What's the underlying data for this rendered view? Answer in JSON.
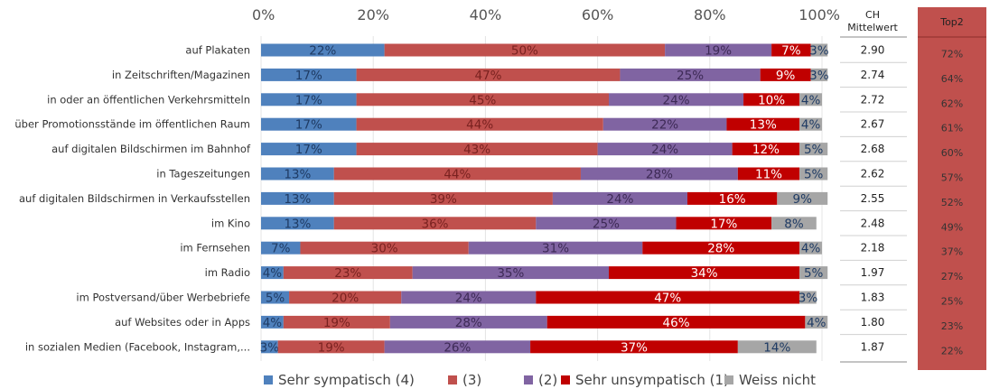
{
  "chart_data": {
    "type": "bar",
    "orientation": "horizontal",
    "stacked": true,
    "xlim": [
      0,
      100
    ],
    "x_ticks": [
      "0%",
      "20%",
      "40%",
      "60%",
      "80%",
      "100%"
    ],
    "categories": [
      "auf Plakaten",
      "in Zeitschriften/Magazinen",
      "in oder an öffentlichen Verkehrsmitteln",
      "über Promotionsstände im öffentlichen Raum",
      "auf digitalen Bildschirmen im Bahnhof",
      "in Tageszeitungen",
      "auf digitalen Bildschirmen in Verkaufsstellen",
      "im Kino",
      "im Fernsehen",
      "im Radio",
      "im Postversand/über Werbebriefe",
      "auf Websites oder in Apps",
      "in sozialen Medien (Facebook, Instagram,..."
    ],
    "series": [
      {
        "name": "Sehr sympatisch (4)",
        "color": "#4f81bd",
        "label_color": "#1f3b64",
        "values": [
          22,
          17,
          17,
          17,
          17,
          13,
          13,
          13,
          7,
          4,
          5,
          4,
          3
        ]
      },
      {
        "name": "(3)",
        "color": "#c0504d",
        "label_color": "#7a2220",
        "values": [
          50,
          47,
          45,
          44,
          43,
          44,
          39,
          36,
          30,
          23,
          20,
          19,
          19
        ]
      },
      {
        "name": "(2)",
        "color": "#8064a2",
        "label_color": "#3d2a56",
        "values": [
          19,
          25,
          24,
          22,
          24,
          28,
          24,
          25,
          31,
          35,
          24,
          28,
          26
        ]
      },
      {
        "name": "Sehr unsympatisch (1)",
        "color": "#c00000",
        "label_color": "#ffffff",
        "values": [
          7,
          9,
          10,
          13,
          12,
          11,
          16,
          17,
          28,
          34,
          47,
          46,
          37
        ]
      },
      {
        "name": "Weiss nicht",
        "color": "#a6a6a6",
        "label_color": "#1f3b64",
        "values": [
          3,
          3,
          4,
          4,
          5,
          5,
          9,
          8,
          4,
          5,
          3,
          4,
          14
        ]
      }
    ],
    "side_columns": {
      "mean": {
        "header": [
          "CH",
          "Mittelwert"
        ],
        "values": [
          "2.90",
          "2.74",
          "2.72",
          "2.67",
          "2.68",
          "2.62",
          "2.55",
          "2.48",
          "2.18",
          "1.97",
          "1.83",
          "1.80",
          "1.87"
        ]
      },
      "top2": {
        "header": "Top2",
        "color": "#c0504d",
        "values": [
          "72%",
          "64%",
          "62%",
          "61%",
          "60%",
          "57%",
          "52%",
          "49%",
          "37%",
          "27%",
          "25%",
          "23%",
          "22%"
        ]
      }
    },
    "legend_position": "bottom",
    "grid": true
  }
}
